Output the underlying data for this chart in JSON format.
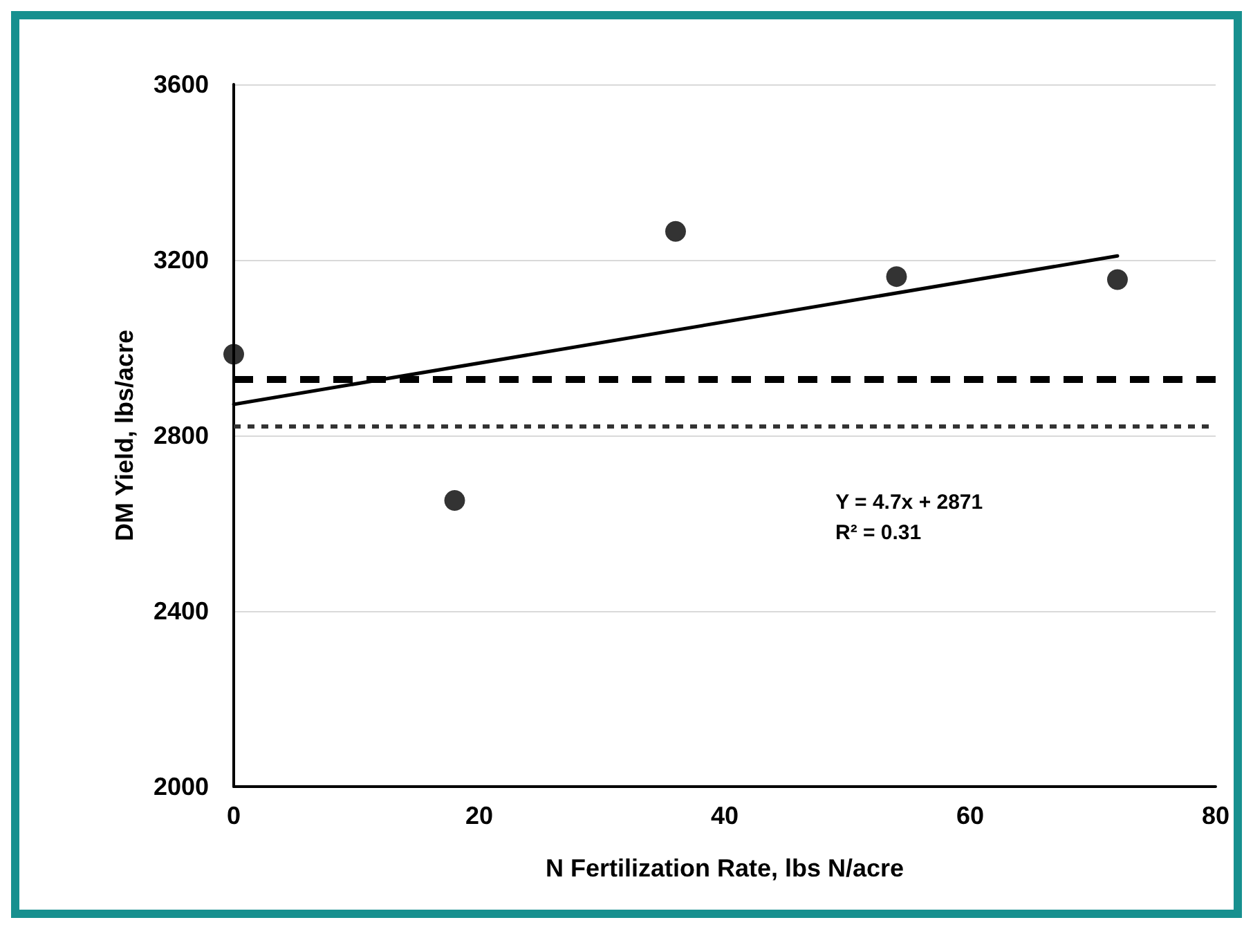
{
  "chart_data": {
    "type": "scatter",
    "xlabel": "N Fertilization Rate, lbs N/acre",
    "ylabel": "DM Yield, lbs/acre",
    "x": [
      0,
      18,
      36,
      54,
      72
    ],
    "series": [
      {
        "type": "scatter",
        "color": "#000000",
        "marker": "circle",
        "values": [
          2985,
          2652,
          3265,
          3162,
          3155
        ]
      },
      {
        "type": "line",
        "color": "#000000",
        "marker": "none",
        "line_style": "solid",
        "x": [
          0,
          72
        ],
        "values": [
          2871,
          3209
        ]
      }
    ],
    "ref_lines": [
      {
        "axis": "y",
        "value": 2928,
        "color": "#000000",
        "line_style": "dashed"
      },
      {
        "axis": "y",
        "value": 2822,
        "color": "#333333",
        "line_style": "dotted"
      }
    ],
    "annotations": [
      "Y = 4.7x + 2871",
      "R² = 0.31"
    ],
    "xlim": [
      0,
      80
    ],
    "xticks": [
      0,
      20,
      40,
      60,
      80
    ],
    "ylim": [
      2000,
      3600
    ],
    "yticks": [
      2000,
      2400,
      2800,
      3200,
      3600
    ],
    "grid": "y"
  }
}
